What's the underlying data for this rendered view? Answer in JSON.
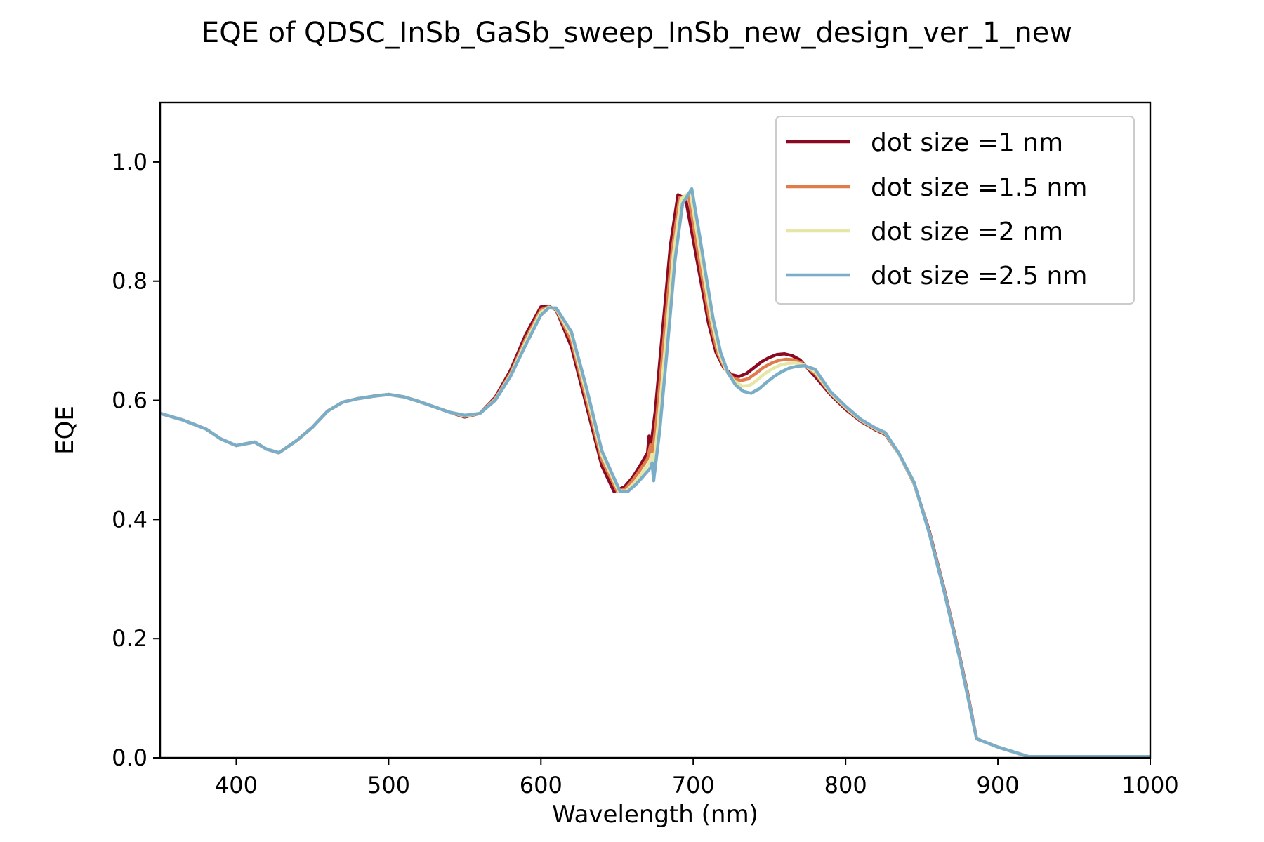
{
  "chart_data": {
    "type": "line",
    "title": "EQE of  QDSC_InSb_GaSb_sweep_InSb_new_design_ver_1_new",
    "xlabel": "Wavelength (nm)",
    "ylabel": "EQE",
    "xlim": [
      350,
      1000
    ],
    "ylim": [
      0,
      1.1
    ],
    "x_ticks": [
      400,
      500,
      600,
      700,
      800,
      900,
      1000
    ],
    "y_ticks": [
      0.0,
      0.2,
      0.4,
      0.6,
      0.8,
      1.0
    ],
    "x_tick_labels": [
      "400",
      "500",
      "600",
      "700",
      "800",
      "900",
      "1000"
    ],
    "y_tick_labels": [
      "0.0",
      "0.2",
      "0.4",
      "0.6",
      "0.8",
      "1.0"
    ],
    "legend_position": "top-right",
    "grid": false,
    "series": [
      {
        "name": "dot size =1 nm",
        "color": "#8b0a22",
        "x": [
          350,
          365,
          380,
          390,
          400,
          412,
          420,
          428,
          440,
          450,
          460,
          470,
          480,
          490,
          500,
          510,
          520,
          530,
          540,
          550,
          560,
          570,
          580,
          590,
          600,
          605,
          610,
          620,
          630,
          640,
          648,
          655,
          660,
          665,
          670,
          671,
          672,
          675,
          680,
          685,
          690,
          695,
          700,
          705,
          710,
          715,
          720,
          725,
          730,
          735,
          740,
          745,
          750,
          755,
          760,
          765,
          770,
          780,
          790,
          800,
          810,
          820,
          826,
          835,
          845,
          855,
          865,
          875,
          880,
          886,
          900,
          920,
          950,
          1000
        ],
        "y": [
          0.578,
          0.567,
          0.552,
          0.535,
          0.524,
          0.53,
          0.518,
          0.512,
          0.533,
          0.555,
          0.582,
          0.597,
          0.603,
          0.607,
          0.61,
          0.606,
          0.598,
          0.589,
          0.58,
          0.572,
          0.578,
          0.605,
          0.65,
          0.71,
          0.757,
          0.758,
          0.752,
          0.69,
          0.59,
          0.49,
          0.447,
          0.455,
          0.47,
          0.49,
          0.512,
          0.54,
          0.52,
          0.58,
          0.72,
          0.86,
          0.945,
          0.938,
          0.87,
          0.8,
          0.73,
          0.68,
          0.655,
          0.643,
          0.64,
          0.645,
          0.655,
          0.665,
          0.672,
          0.677,
          0.678,
          0.675,
          0.668,
          0.64,
          0.61,
          0.585,
          0.565,
          0.55,
          0.543,
          0.51,
          0.46,
          0.38,
          0.28,
          0.17,
          0.11,
          0.032,
          0.018,
          0.002,
          0.002,
          0.002
        ]
      },
      {
        "name": "dot size =1.5 nm",
        "color": "#e07b4b",
        "x": [
          350,
          365,
          380,
          390,
          400,
          412,
          420,
          428,
          440,
          450,
          460,
          470,
          480,
          490,
          500,
          510,
          520,
          530,
          540,
          550,
          560,
          570,
          580,
          590,
          600,
          605,
          610,
          620,
          630,
          640,
          650,
          655,
          660,
          665,
          670,
          672,
          673,
          676,
          681,
          686,
          691,
          697,
          701,
          706,
          711,
          716,
          721,
          726,
          731,
          736,
          741,
          746,
          751,
          756,
          761,
          766,
          771,
          780,
          790,
          800,
          810,
          820,
          826,
          835,
          845,
          855,
          865,
          875,
          880,
          886,
          900,
          920,
          950,
          1000
        ],
        "y": [
          0.578,
          0.567,
          0.552,
          0.535,
          0.524,
          0.53,
          0.518,
          0.512,
          0.533,
          0.555,
          0.582,
          0.597,
          0.603,
          0.607,
          0.61,
          0.606,
          0.598,
          0.589,
          0.58,
          0.573,
          0.578,
          0.603,
          0.645,
          0.703,
          0.752,
          0.757,
          0.753,
          0.7,
          0.6,
          0.5,
          0.448,
          0.45,
          0.465,
          0.483,
          0.502,
          0.525,
          0.505,
          0.57,
          0.71,
          0.85,
          0.94,
          0.944,
          0.88,
          0.805,
          0.732,
          0.68,
          0.652,
          0.638,
          0.633,
          0.636,
          0.645,
          0.655,
          0.662,
          0.667,
          0.669,
          0.668,
          0.663,
          0.645,
          0.612,
          0.587,
          0.566,
          0.551,
          0.544,
          0.51,
          0.46,
          0.378,
          0.278,
          0.168,
          0.108,
          0.032,
          0.018,
          0.002,
          0.002,
          0.002
        ]
      },
      {
        "name": "dot size =2 nm",
        "color": "#e6e6a6",
        "x": [
          350,
          365,
          380,
          390,
          400,
          412,
          420,
          428,
          440,
          450,
          460,
          470,
          480,
          490,
          500,
          510,
          520,
          530,
          540,
          550,
          560,
          570,
          580,
          590,
          600,
          605,
          610,
          620,
          630,
          640,
          651,
          656,
          661,
          666,
          671,
          673,
          674,
          677,
          682,
          687,
          692,
          698,
          702,
          707,
          712,
          717,
          722,
          727,
          732,
          737,
          742,
          747,
          752,
          757,
          762,
          767,
          772,
          780,
          790,
          800,
          810,
          820,
          826,
          835,
          845,
          855,
          865,
          875,
          880,
          886,
          900,
          920,
          950,
          1000
        ],
        "y": [
          0.578,
          0.567,
          0.552,
          0.535,
          0.524,
          0.53,
          0.518,
          0.512,
          0.533,
          0.555,
          0.582,
          0.597,
          0.603,
          0.607,
          0.61,
          0.606,
          0.598,
          0.589,
          0.58,
          0.574,
          0.578,
          0.601,
          0.642,
          0.698,
          0.748,
          0.756,
          0.754,
          0.708,
          0.61,
          0.508,
          0.448,
          0.448,
          0.461,
          0.477,
          0.494,
          0.51,
          0.49,
          0.56,
          0.7,
          0.845,
          0.938,
          0.95,
          0.888,
          0.81,
          0.735,
          0.68,
          0.648,
          0.632,
          0.624,
          0.625,
          0.634,
          0.645,
          0.653,
          0.659,
          0.662,
          0.663,
          0.66,
          0.648,
          0.613,
          0.588,
          0.567,
          0.552,
          0.545,
          0.51,
          0.461,
          0.377,
          0.277,
          0.167,
          0.106,
          0.032,
          0.018,
          0.002,
          0.002,
          0.002
        ]
      },
      {
        "name": "dot size =2.5 nm",
        "color": "#7aaec8",
        "x": [
          350,
          365,
          380,
          390,
          400,
          412,
          420,
          428,
          440,
          450,
          460,
          470,
          480,
          490,
          500,
          510,
          520,
          530,
          540,
          550,
          560,
          570,
          580,
          590,
          600,
          605,
          610,
          620,
          630,
          640,
          652,
          657,
          662,
          667,
          672,
          673,
          674,
          678,
          683,
          688,
          693,
          699,
          703,
          708,
          713,
          718,
          723,
          728,
          733,
          738,
          743,
          748,
          753,
          758,
          763,
          768,
          773,
          780,
          790,
          800,
          810,
          820,
          826,
          835,
          845,
          855,
          865,
          875,
          880,
          886,
          900,
          920,
          950,
          1000
        ],
        "y": [
          0.578,
          0.567,
          0.552,
          0.535,
          0.524,
          0.53,
          0.518,
          0.512,
          0.533,
          0.555,
          0.582,
          0.597,
          0.603,
          0.607,
          0.61,
          0.606,
          0.598,
          0.589,
          0.58,
          0.575,
          0.578,
          0.6,
          0.64,
          0.693,
          0.743,
          0.755,
          0.755,
          0.715,
          0.62,
          0.515,
          0.447,
          0.447,
          0.458,
          0.472,
          0.487,
          0.495,
          0.465,
          0.55,
          0.69,
          0.835,
          0.93,
          0.955,
          0.895,
          0.815,
          0.738,
          0.68,
          0.645,
          0.625,
          0.615,
          0.612,
          0.619,
          0.63,
          0.64,
          0.648,
          0.654,
          0.657,
          0.658,
          0.652,
          0.615,
          0.59,
          0.568,
          0.553,
          0.546,
          0.511,
          0.462,
          0.376,
          0.276,
          0.166,
          0.105,
          0.032,
          0.018,
          0.002,
          0.002,
          0.002
        ]
      }
    ]
  }
}
